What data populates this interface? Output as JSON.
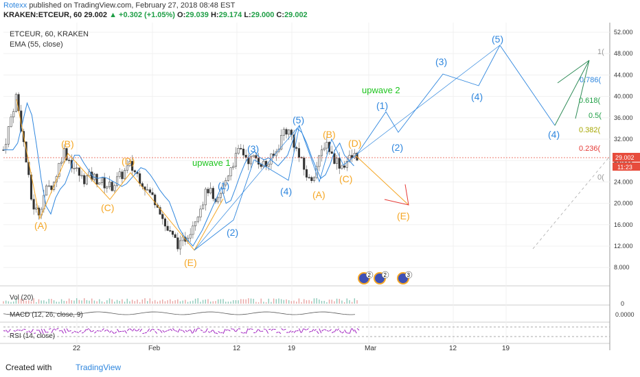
{
  "header": {
    "author": "Rotexx",
    "published": "published on TradingView.com, February 27, 2018 08:48 EST",
    "symbol": "KRAKEN:ETCEUR, 60",
    "last": "29.002",
    "change": "▲ +0.302 (+1.05%)",
    "o_label": "O:",
    "o": "29.039",
    "h_label": "H:",
    "h": "29.174",
    "l_label": "L:",
    "l": "29.000",
    "c_label": "C:",
    "c": "29.002"
  },
  "chart": {
    "symbol_line": "ETCEUR, 60, KRAKEN",
    "ema_label": "EMA (55, close)",
    "vol_label": "Vol (20)",
    "macd_label": "MACD (12, 26, close, 9)",
    "rsi_label": "RSI (14, close)",
    "macd_value": "0.0000",
    "vol_zero": "0",
    "last_price_tag": "29.002",
    "countdown_tag": "11:23",
    "fib_levels": [
      "1(",
      "0.786(",
      "0.618(",
      "0.5(",
      "0.382(",
      "0.236(",
      "0("
    ],
    "wave_labels": [
      "upwave 1",
      "upwave 2"
    ],
    "abc_labels": [
      "(A)",
      "(B)",
      "(C)",
      "(D)",
      "(E)",
      "(A)",
      "(B)",
      "(C)",
      "(D)",
      "(E)"
    ],
    "count_labels": [
      "(1)",
      "(2)",
      "(3)",
      "(4)",
      "(5)",
      "(1)",
      "(2)",
      "(3)",
      "(4)",
      "(5)"
    ],
    "badges": [
      "2",
      "2",
      "3"
    ]
  },
  "chart_data": {
    "type": "candlestick",
    "y_axis": {
      "ticks": [
        "52.000",
        "48.000",
        "44.000",
        "40.000",
        "36.000",
        "32.000",
        "28.000",
        "24.000",
        "20.000",
        "16.000",
        "12.000",
        "8.000"
      ],
      "ylim": [
        4,
        54
      ]
    },
    "x_axis": {
      "ticks": [
        "22",
        "Feb",
        "12",
        "19",
        "Mar",
        "12",
        "19"
      ]
    },
    "series": [
      {
        "name": "EMA (55, close)",
        "color": "#2e86de"
      }
    ],
    "price_path": [
      [
        0,
        30
      ],
      [
        2,
        35
      ],
      [
        4,
        40
      ],
      [
        6,
        33
      ],
      [
        9,
        20
      ],
      [
        11,
        18
      ],
      [
        13,
        22
      ],
      [
        16,
        24
      ],
      [
        19,
        30
      ],
      [
        22,
        27
      ],
      [
        25,
        24.5
      ],
      [
        28,
        25
      ],
      [
        31,
        24
      ],
      [
        34,
        23
      ],
      [
        37,
        25
      ],
      [
        40,
        27
      ],
      [
        43,
        25
      ],
      [
        46,
        22
      ],
      [
        49,
        20
      ],
      [
        51,
        16
      ],
      [
        53,
        14
      ],
      [
        56,
        12
      ],
      [
        59,
        15
      ],
      [
        62,
        19
      ],
      [
        65,
        23
      ],
      [
        67,
        19
      ],
      [
        69,
        22
      ],
      [
        72,
        27
      ],
      [
        75,
        30
      ],
      [
        78,
        28
      ],
      [
        80,
        28.5
      ],
      [
        83,
        27
      ],
      [
        86,
        29
      ],
      [
        89,
        34
      ],
      [
        91,
        33
      ],
      [
        94,
        28
      ],
      [
        97,
        24
      ],
      [
        100,
        28
      ],
      [
        102,
        32
      ],
      [
        104,
        29
      ],
      [
        107,
        27
      ],
      [
        110,
        28.5
      ],
      [
        112,
        29
      ]
    ],
    "colors": {
      "up": "#26a69a",
      "down": "#ef5350",
      "ema": "#2e86de",
      "orange": "#f5a623",
      "count": "#2e86de",
      "green": "#2ecc40",
      "red": "#e53935"
    }
  }
}
